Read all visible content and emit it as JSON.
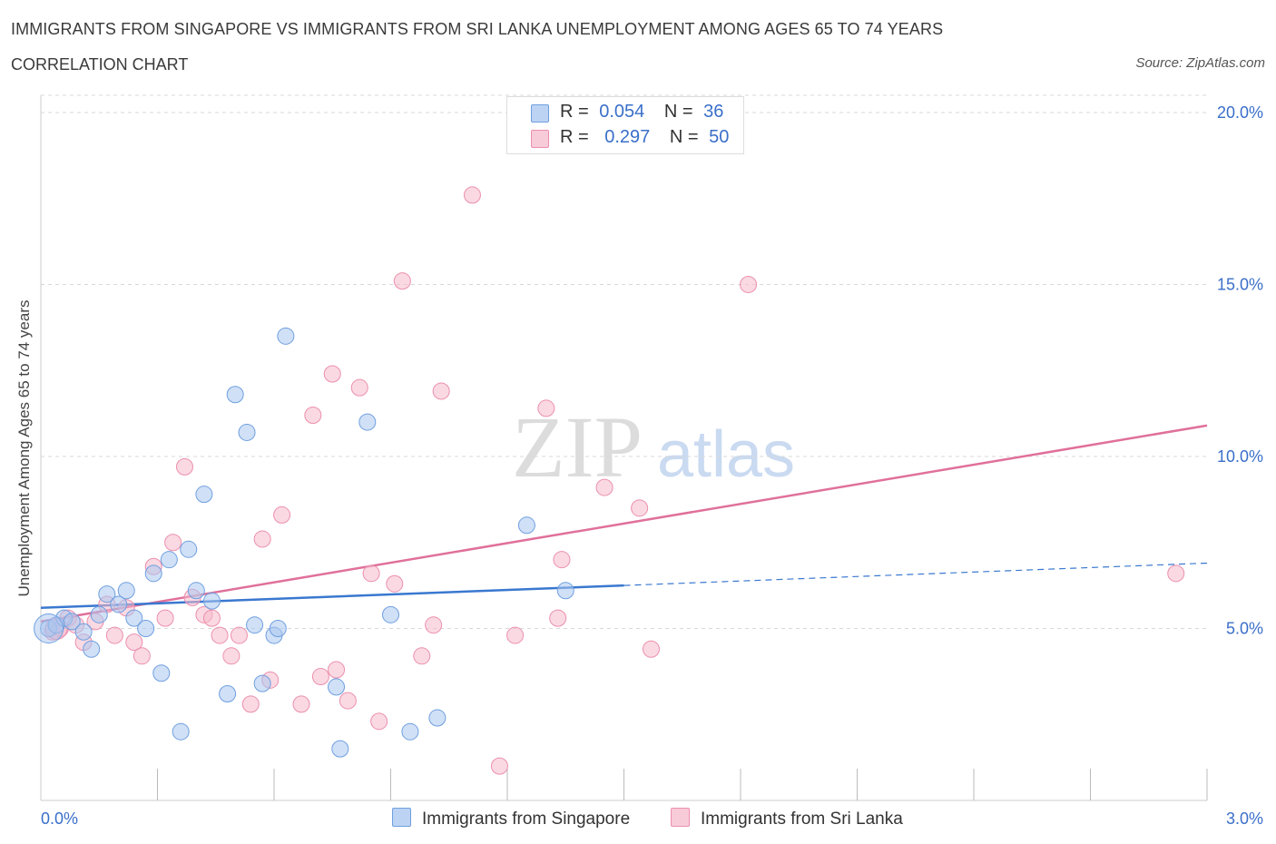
{
  "header": {
    "title": "IMMIGRANTS FROM SINGAPORE VS IMMIGRANTS FROM SRI LANKA UNEMPLOYMENT AMONG AGES 65 TO 74 YEARS",
    "subtitle": "CORRELATION CHART",
    "source": "Source: ZipAtlas.com"
  },
  "legend": {
    "r_label": "R =",
    "n_label": "N =",
    "items": [
      {
        "name": "Immigrants from Singapore",
        "r": "0.054",
        "n": "36"
      },
      {
        "name": "Immigrants from Sri Lanka",
        "r": "0.297",
        "n": "50"
      }
    ]
  },
  "watermark": {
    "zip": "ZIP",
    "atlas": "atlas"
  },
  "colors": {
    "singapore_fill": "#a9c6ef",
    "singapore_stroke": "#6f9fe0",
    "singapore_line": "#3a78d0",
    "srilanka_fill": "#f5b9cb",
    "srilanka_stroke": "#ec8fae",
    "srilanka_line": "#e0709a",
    "axis_label": "#3a6fc9",
    "grid": "#d8d8d8"
  },
  "chart_data": {
    "type": "scatter",
    "title": "IMMIGRANTS FROM SINGAPORE VS IMMIGRANTS FROM SRI LANKA UNEMPLOYMENT AMONG AGES 65 TO 74 YEARS",
    "xlabel": "",
    "ylabel": "Unemployment Among Ages 65 to 74 years",
    "xlim": [
      0,
      3.0
    ],
    "ylim": [
      0,
      20.5
    ],
    "x_tick_labels": [
      "0.0%",
      "3.0%"
    ],
    "y_ticks": [
      5,
      10,
      15,
      20
    ],
    "y_tick_labels": [
      "5.0%",
      "10.0%",
      "15.0%",
      "20.0%"
    ],
    "grid": true,
    "series": [
      {
        "name": "Immigrants from Singapore",
        "r": 0.054,
        "n": 36,
        "trend": {
          "x0": 0.0,
          "y0": 5.6,
          "x1": 1.5,
          "y1": 6.25,
          "dashed_to_x": 3.0,
          "dashed_to_y": 6.9
        },
        "points": [
          {
            "x": 0.02,
            "y": 5.0
          },
          {
            "x": 0.04,
            "y": 5.1
          },
          {
            "x": 0.06,
            "y": 5.3
          },
          {
            "x": 0.08,
            "y": 5.2
          },
          {
            "x": 0.11,
            "y": 4.9
          },
          {
            "x": 0.13,
            "y": 4.4
          },
          {
            "x": 0.15,
            "y": 5.4
          },
          {
            "x": 0.17,
            "y": 6.0
          },
          {
            "x": 0.2,
            "y": 5.7
          },
          {
            "x": 0.22,
            "y": 6.1
          },
          {
            "x": 0.24,
            "y": 5.3
          },
          {
            "x": 0.27,
            "y": 5.0
          },
          {
            "x": 0.29,
            "y": 6.6
          },
          {
            "x": 0.31,
            "y": 3.7
          },
          {
            "x": 0.33,
            "y": 7.0
          },
          {
            "x": 0.36,
            "y": 2.0
          },
          {
            "x": 0.38,
            "y": 7.3
          },
          {
            "x": 0.4,
            "y": 6.1
          },
          {
            "x": 0.42,
            "y": 8.9
          },
          {
            "x": 0.44,
            "y": 5.8
          },
          {
            "x": 0.48,
            "y": 3.1
          },
          {
            "x": 0.5,
            "y": 11.8
          },
          {
            "x": 0.53,
            "y": 10.7
          },
          {
            "x": 0.55,
            "y": 5.1
          },
          {
            "x": 0.57,
            "y": 3.4
          },
          {
            "x": 0.6,
            "y": 4.8
          },
          {
            "x": 0.61,
            "y": 5.0
          },
          {
            "x": 0.63,
            "y": 13.5
          },
          {
            "x": 0.76,
            "y": 3.3
          },
          {
            "x": 0.77,
            "y": 1.5
          },
          {
            "x": 0.84,
            "y": 11.0
          },
          {
            "x": 0.9,
            "y": 5.4
          },
          {
            "x": 0.95,
            "y": 2.0
          },
          {
            "x": 1.02,
            "y": 2.4
          },
          {
            "x": 1.25,
            "y": 8.0
          },
          {
            "x": 1.35,
            "y": 6.1
          }
        ]
      },
      {
        "name": "Immigrants from Sri Lanka",
        "r": 0.297,
        "n": 50,
        "trend": {
          "x0": 0.0,
          "y0": 5.2,
          "x1": 3.0,
          "y1": 10.9
        },
        "points": [
          {
            "x": 0.03,
            "y": 4.9
          },
          {
            "x": 0.05,
            "y": 5.0
          },
          {
            "x": 0.07,
            "y": 5.3
          },
          {
            "x": 0.09,
            "y": 5.1
          },
          {
            "x": 0.11,
            "y": 4.6
          },
          {
            "x": 0.14,
            "y": 5.2
          },
          {
            "x": 0.17,
            "y": 5.7
          },
          {
            "x": 0.19,
            "y": 4.8
          },
          {
            "x": 0.22,
            "y": 5.6
          },
          {
            "x": 0.24,
            "y": 4.6
          },
          {
            "x": 0.26,
            "y": 4.2
          },
          {
            "x": 0.29,
            "y": 6.8
          },
          {
            "x": 0.32,
            "y": 5.3
          },
          {
            "x": 0.34,
            "y": 7.5
          },
          {
            "x": 0.37,
            "y": 9.7
          },
          {
            "x": 0.39,
            "y": 5.9
          },
          {
            "x": 0.42,
            "y": 5.4
          },
          {
            "x": 0.44,
            "y": 5.3
          },
          {
            "x": 0.46,
            "y": 4.8
          },
          {
            "x": 0.49,
            "y": 4.2
          },
          {
            "x": 0.51,
            "y": 4.8
          },
          {
            "x": 0.54,
            "y": 2.8
          },
          {
            "x": 0.57,
            "y": 7.6
          },
          {
            "x": 0.59,
            "y": 3.5
          },
          {
            "x": 0.62,
            "y": 8.3
          },
          {
            "x": 0.67,
            "y": 2.8
          },
          {
            "x": 0.7,
            "y": 11.2
          },
          {
            "x": 0.72,
            "y": 3.6
          },
          {
            "x": 0.75,
            "y": 12.4
          },
          {
            "x": 0.76,
            "y": 3.8
          },
          {
            "x": 0.79,
            "y": 2.9
          },
          {
            "x": 0.82,
            "y": 12.0
          },
          {
            "x": 0.85,
            "y": 6.6
          },
          {
            "x": 0.87,
            "y": 2.3
          },
          {
            "x": 0.91,
            "y": 6.3
          },
          {
            "x": 0.93,
            "y": 15.1
          },
          {
            "x": 0.98,
            "y": 4.2
          },
          {
            "x": 1.01,
            "y": 5.1
          },
          {
            "x": 1.03,
            "y": 11.9
          },
          {
            "x": 1.11,
            "y": 17.6
          },
          {
            "x": 1.18,
            "y": 1.0
          },
          {
            "x": 1.22,
            "y": 4.8
          },
          {
            "x": 1.3,
            "y": 11.4
          },
          {
            "x": 1.33,
            "y": 5.3
          },
          {
            "x": 1.34,
            "y": 7.0
          },
          {
            "x": 1.45,
            "y": 9.1
          },
          {
            "x": 1.54,
            "y": 8.5
          },
          {
            "x": 1.57,
            "y": 4.4
          },
          {
            "x": 1.82,
            "y": 15.0
          },
          {
            "x": 2.92,
            "y": 6.6
          }
        ]
      }
    ]
  }
}
